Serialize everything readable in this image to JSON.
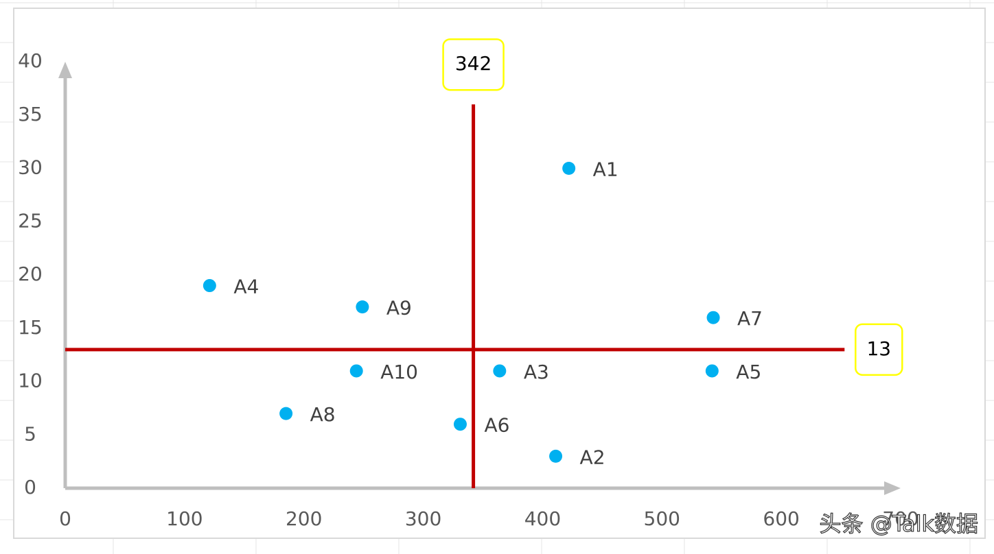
{
  "chart_data": {
    "type": "scatter",
    "x": [
      422,
      411,
      364,
      121,
      542,
      331,
      543,
      185,
      249,
      244
    ],
    "y": [
      30,
      3,
      11,
      19,
      11,
      6,
      16,
      7,
      17,
      11
    ],
    "point_labels": [
      "A1",
      "A2",
      "A3",
      "A4",
      "A5",
      "A6",
      "A7",
      "A8",
      "A9",
      "A10"
    ],
    "color": "#00b0f0",
    "xlim": [
      0,
      700
    ],
    "xticks": [
      0,
      100,
      200,
      300,
      400,
      500,
      600,
      700
    ],
    "ylim": [
      0,
      40
    ],
    "yticks": [
      0,
      5,
      10,
      15,
      20,
      25,
      30,
      35,
      40
    ],
    "reference_lines": [
      {
        "axis": "x",
        "value": 342,
        "from": 0,
        "to": 36,
        "color": "#c00000"
      },
      {
        "axis": "y",
        "value": 13,
        "from": 0,
        "to": 653,
        "color": "#c00000"
      }
    ],
    "watermark": "头条 @Talk数据"
  }
}
